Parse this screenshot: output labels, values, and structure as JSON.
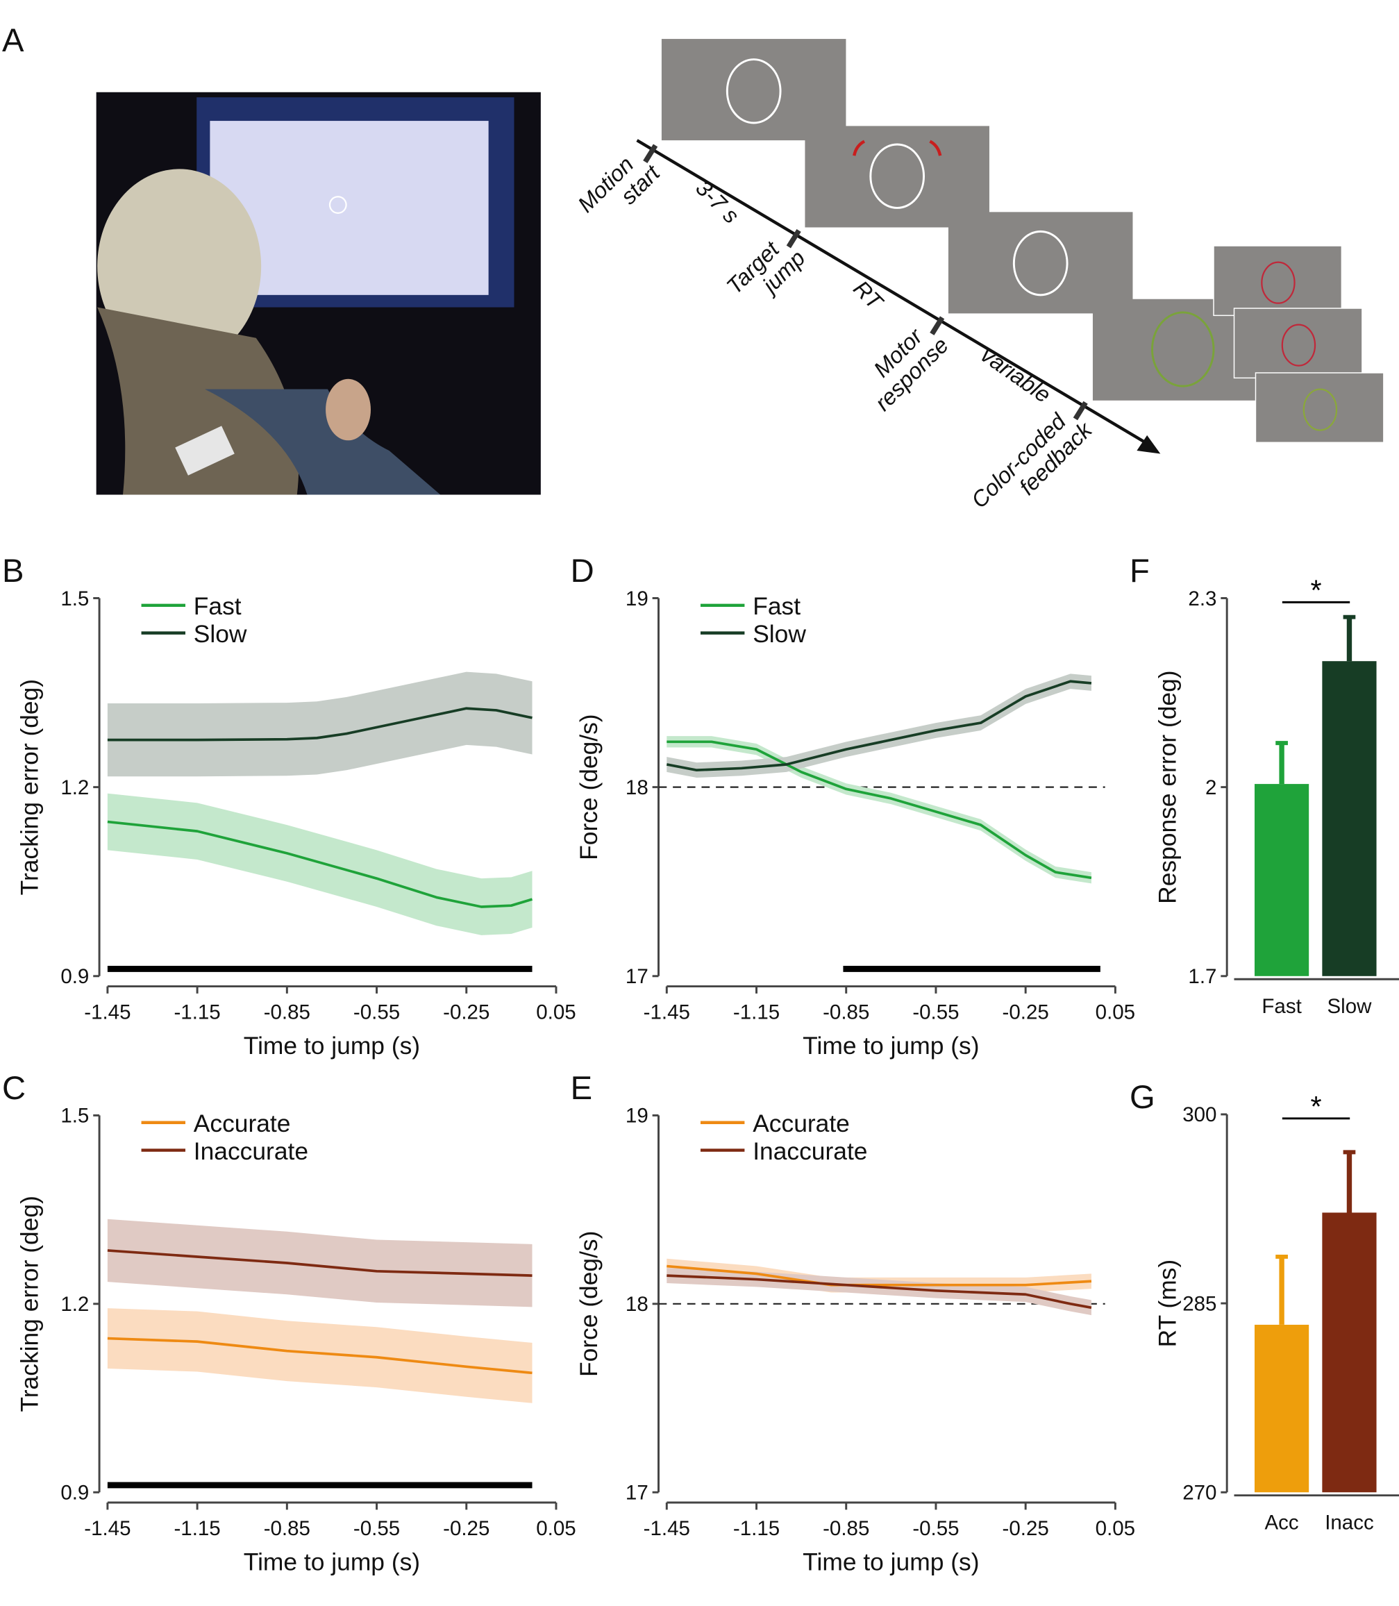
{
  "panel_labels": {
    "A": "A",
    "B": "B",
    "C": "C",
    "D": "D",
    "E": "E",
    "F": "F",
    "G": "G"
  },
  "timeline": {
    "events": [
      "Motion start",
      "Target jump",
      "Motor response",
      "Color-coded feedback"
    ],
    "intervals": [
      "3-7 s",
      "RT",
      "variable"
    ]
  },
  "colors": {
    "fast": "#1fa33a",
    "slow": "#173d25",
    "accurate": "#ee8a13",
    "inaccurate": "#7e2a12",
    "acc_bar": "#ee9e0c",
    "screen_gray": "#888684"
  },
  "chart_data": [
    {
      "id": "B",
      "type": "line",
      "xlabel": "Time to jump (s)",
      "ylabel": "Tracking error (deg)",
      "xlim": [
        -1.45,
        0.05
      ],
      "ylim": [
        0.9,
        1.5
      ],
      "xticks": [
        "-1.45",
        "-1.15",
        "-0.85",
        "-0.55",
        "-0.25",
        "0.05"
      ],
      "yticks": [
        "0.9",
        "1.2",
        "1.5"
      ],
      "legend": "top-left",
      "significance_bar": [
        -1.45,
        -0.03
      ],
      "series": [
        {
          "name": "Fast",
          "color": "#1fa33a",
          "band": "#c4e8cc",
          "x": [
            -1.45,
            -1.15,
            -0.85,
            -0.55,
            -0.35,
            -0.2,
            -0.1,
            -0.03
          ],
          "y": [
            1.145,
            1.13,
            1.095,
            1.055,
            1.025,
            1.01,
            1.012,
            1.022
          ],
          "sem": [
            0.045,
            0.045,
            0.045,
            0.045,
            0.045,
            0.045,
            0.045,
            0.045
          ]
        },
        {
          "name": "Slow",
          "color": "#173d25",
          "band": "#c6cdc8",
          "x": [
            -1.45,
            -1.15,
            -0.85,
            -0.75,
            -0.65,
            -0.45,
            -0.25,
            -0.15,
            -0.03
          ],
          "y": [
            1.275,
            1.275,
            1.276,
            1.278,
            1.285,
            1.305,
            1.325,
            1.322,
            1.31
          ],
          "sem": [
            0.058,
            0.058,
            0.058,
            0.058,
            0.058,
            0.058,
            0.058,
            0.058,
            0.058
          ]
        }
      ]
    },
    {
      "id": "D",
      "type": "line",
      "xlabel": "Time to jump (s)",
      "ylabel": "Force (deg/s)",
      "xlim": [
        -1.45,
        0.05
      ],
      "ylim": [
        17,
        19
      ],
      "xticks": [
        "-1.45",
        "-1.15",
        "-0.85",
        "-0.55",
        "-0.25",
        "0.05"
      ],
      "yticks": [
        "17",
        "18",
        "19"
      ],
      "legend": "top-left",
      "reference_line": 18,
      "significance_bar": [
        -0.86,
        0.0
      ],
      "series": [
        {
          "name": "Fast",
          "color": "#1fa33a",
          "band": "#c4e8cc",
          "x": [
            -1.45,
            -1.3,
            -1.15,
            -1.0,
            -0.85,
            -0.7,
            -0.55,
            -0.4,
            -0.25,
            -0.15,
            -0.03
          ],
          "y": [
            18.24,
            18.24,
            18.2,
            18.08,
            17.99,
            17.94,
            17.87,
            17.8,
            17.64,
            17.55,
            17.52
          ],
          "sem": [
            0.03,
            0.03,
            0.03,
            0.03,
            0.03,
            0.03,
            0.03,
            0.03,
            0.03,
            0.03,
            0.03
          ]
        },
        {
          "name": "Slow",
          "color": "#173d25",
          "band": "#c6cdc8",
          "x": [
            -1.45,
            -1.35,
            -1.2,
            -1.05,
            -0.85,
            -0.7,
            -0.55,
            -0.4,
            -0.25,
            -0.1,
            -0.03
          ],
          "y": [
            18.12,
            18.09,
            18.1,
            18.12,
            18.2,
            18.25,
            18.3,
            18.34,
            18.48,
            18.56,
            18.55
          ],
          "sem": [
            0.04,
            0.04,
            0.04,
            0.04,
            0.04,
            0.04,
            0.04,
            0.04,
            0.04,
            0.04,
            0.04
          ]
        }
      ]
    },
    {
      "id": "F",
      "type": "bar",
      "ylabel": "Response error (deg)",
      "ylim": [
        1.7,
        2.3
      ],
      "yticks": [
        "1.7",
        "2",
        "2.3"
      ],
      "categories": [
        "Fast",
        "Slow"
      ],
      "values": [
        2.005,
        2.2
      ],
      "errors": [
        0.065,
        0.07
      ],
      "colors": [
        "#1fa33a",
        "#173d25"
      ],
      "significance": "*"
    },
    {
      "id": "C",
      "type": "line",
      "xlabel": "Time to jump (s)",
      "ylabel": "Tracking error (deg)",
      "xlim": [
        -1.45,
        0.05
      ],
      "ylim": [
        0.9,
        1.5
      ],
      "xticks": [
        "-1.45",
        "-1.15",
        "-0.85",
        "-0.55",
        "-0.25",
        "0.05"
      ],
      "yticks": [
        "0.9",
        "1.2",
        "1.5"
      ],
      "legend": "top-left",
      "significance_bar": [
        -1.45,
        -0.03
      ],
      "series": [
        {
          "name": "Accurate",
          "color": "#ee8a13",
          "band": "#fbdcc0",
          "x": [
            -1.45,
            -1.15,
            -0.85,
            -0.55,
            -0.25,
            -0.03
          ],
          "y": [
            1.145,
            1.14,
            1.125,
            1.115,
            1.1,
            1.09
          ],
          "sem": [
            0.048,
            0.048,
            0.048,
            0.048,
            0.048,
            0.048
          ]
        },
        {
          "name": "Inaccurate",
          "color": "#7e2a12",
          "band": "#e0cac4",
          "x": [
            -1.45,
            -1.15,
            -0.85,
            -0.55,
            -0.25,
            -0.03
          ],
          "y": [
            1.285,
            1.275,
            1.265,
            1.252,
            1.248,
            1.245
          ],
          "sem": [
            0.05,
            0.05,
            0.05,
            0.05,
            0.05,
            0.05
          ]
        }
      ]
    },
    {
      "id": "E",
      "type": "line",
      "xlabel": "Time to jump (s)",
      "ylabel": "Force (deg/s)",
      "xlim": [
        -1.45,
        0.05
      ],
      "ylim": [
        17,
        19
      ],
      "xticks": [
        "-1.45",
        "-1.15",
        "-0.85",
        "-0.55",
        "-0.25",
        "0.05"
      ],
      "yticks": [
        "17",
        "18",
        "19"
      ],
      "legend": "top-left",
      "reference_line": 18,
      "series": [
        {
          "name": "Accurate",
          "color": "#ee8a13",
          "band": "#fbdcc0",
          "x": [
            -1.45,
            -1.15,
            -0.9,
            -0.55,
            -0.25,
            -0.03
          ],
          "y": [
            18.2,
            18.16,
            18.1,
            18.1,
            18.1,
            18.12
          ],
          "sem": [
            0.04,
            0.04,
            0.04,
            0.04,
            0.04,
            0.04
          ]
        },
        {
          "name": "Inaccurate",
          "color": "#7e2a12",
          "band": "#e0cac4",
          "x": [
            -1.45,
            -1.15,
            -0.85,
            -0.55,
            -0.25,
            -0.1,
            -0.03
          ],
          "y": [
            18.15,
            18.13,
            18.1,
            18.07,
            18.05,
            18.0,
            17.98
          ],
          "sem": [
            0.04,
            0.04,
            0.04,
            0.04,
            0.04,
            0.04,
            0.04
          ]
        }
      ]
    },
    {
      "id": "G",
      "type": "bar",
      "ylabel": "RT (ms)",
      "ylim": [
        270,
        300
      ],
      "yticks": [
        "270",
        "285",
        "300"
      ],
      "categories": [
        "Acc",
        "Inacc"
      ],
      "values": [
        283.3,
        292.2
      ],
      "errors": [
        5.4,
        4.8
      ],
      "colors": [
        "#ee9e0c",
        "#7e2a12"
      ],
      "significance": "*"
    }
  ]
}
